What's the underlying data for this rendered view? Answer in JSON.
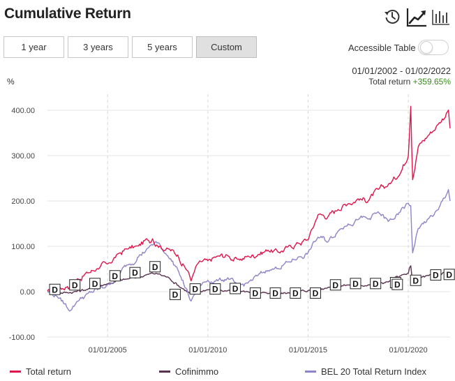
{
  "header": {
    "title": "Cumulative Return",
    "icons": [
      "history-icon",
      "line-chart-icon",
      "bar-chart-icon"
    ]
  },
  "range_buttons": [
    {
      "label": "1 year",
      "active": false
    },
    {
      "label": "3 years",
      "active": false
    },
    {
      "label": "5 years",
      "active": false
    },
    {
      "label": "Custom",
      "active": true
    }
  ],
  "accessible_table": {
    "label": "Accessible Table",
    "on": false
  },
  "summary": {
    "date_range": "01/01/2002 - 01/02/2022",
    "total_label": "Total return",
    "total_value": "+359.65%"
  },
  "colors": {
    "total_return": "#e0134a",
    "cofinimmo": "#5a3050",
    "bel20": "#8c84c8",
    "positive": "#3a8a1e",
    "dividend_marker_border": "#222222"
  },
  "chart_data": {
    "type": "line",
    "ylabel": "%",
    "ylim": [
      -100,
      420
    ],
    "xlim": [
      "2002-01-01",
      "2022-02-01"
    ],
    "y_ticks": [
      "400.00",
      "300.00",
      "200.00",
      "100.00",
      "0.00",
      "-100.00"
    ],
    "y_tick_values": [
      400,
      300,
      200,
      100,
      0,
      -100
    ],
    "x_ticks": [
      "01/01/2005",
      "01/01/2010",
      "01/01/2015",
      "01/01/2020"
    ],
    "x_tick_values": [
      "2005-01-01",
      "2010-01-01",
      "2015-01-01",
      "2020-01-01"
    ],
    "grid": true,
    "legend_position": "bottom",
    "series": [
      {
        "name": "Total return",
        "x": [
          "2002-01-01",
          "2002-07-01",
          "2003-01-01",
          "2003-04-01",
          "2003-07-01",
          "2004-01-01",
          "2004-07-01",
          "2005-01-01",
          "2005-07-01",
          "2006-01-01",
          "2006-07-01",
          "2007-01-01",
          "2007-04-01",
          "2007-07-01",
          "2008-01-01",
          "2008-07-01",
          "2009-01-01",
          "2009-03-01",
          "2009-07-01",
          "2010-01-01",
          "2010-07-01",
          "2011-01-01",
          "2011-07-01",
          "2012-01-01",
          "2012-07-01",
          "2013-01-01",
          "2013-07-01",
          "2014-01-01",
          "2014-07-01",
          "2015-01-01",
          "2015-07-01",
          "2016-01-01",
          "2016-07-01",
          "2017-01-01",
          "2017-07-01",
          "2018-01-01",
          "2018-07-01",
          "2019-01-01",
          "2019-07-01",
          "2020-01-01",
          "2020-02-15",
          "2020-03-20",
          "2020-07-01",
          "2021-01-01",
          "2021-07-01",
          "2022-01-01",
          "2022-02-01"
        ],
        "values": [
          0,
          8,
          12,
          6,
          28,
          42,
          52,
          60,
          82,
          95,
          100,
          115,
          118,
          102,
          95,
          80,
          45,
          25,
          62,
          68,
          78,
          80,
          70,
          78,
          82,
          92,
          88,
          98,
          108,
          115,
          170,
          165,
          182,
          195,
          205,
          200,
          225,
          235,
          255,
          300,
          410,
          248,
          320,
          345,
          370,
          400,
          360
        ]
      },
      {
        "name": "Cofinimmo",
        "x": [
          "2002-01-01",
          "2003-01-01",
          "2004-01-01",
          "2005-01-01",
          "2006-01-01",
          "2007-01-01",
          "2007-06-01",
          "2008-01-01",
          "2009-03-01",
          "2010-01-01",
          "2011-01-01",
          "2012-01-01",
          "2013-01-01",
          "2014-01-01",
          "2015-01-01",
          "2016-01-01",
          "2017-01-01",
          "2018-01-01",
          "2019-01-01",
          "2020-01-01",
          "2020-02-15",
          "2020-03-20",
          "2020-07-01",
          "2021-01-01",
          "2021-07-01",
          "2022-01-01",
          "2022-02-01"
        ],
        "values": [
          0,
          -2,
          5,
          18,
          28,
          38,
          40,
          32,
          -5,
          5,
          2,
          0,
          -5,
          -3,
          2,
          10,
          15,
          15,
          22,
          40,
          58,
          20,
          30,
          35,
          38,
          45,
          35
        ]
      },
      {
        "name": "BEL 20 Total Return Index",
        "x": [
          "2002-01-01",
          "2002-07-01",
          "2003-03-01",
          "2003-07-01",
          "2004-01-01",
          "2004-07-01",
          "2005-01-01",
          "2005-07-01",
          "2006-01-01",
          "2006-07-01",
          "2007-01-01",
          "2007-06-01",
          "2008-01-01",
          "2008-07-01",
          "2009-03-01",
          "2009-07-01",
          "2010-01-01",
          "2010-07-01",
          "2011-01-01",
          "2011-07-01",
          "2012-01-01",
          "2012-07-01",
          "2013-01-01",
          "2013-07-01",
          "2014-01-01",
          "2014-07-01",
          "2015-01-01",
          "2015-07-01",
          "2016-01-01",
          "2016-07-01",
          "2017-01-01",
          "2017-07-01",
          "2018-01-01",
          "2018-07-01",
          "2019-01-01",
          "2019-07-01",
          "2020-01-01",
          "2020-02-15",
          "2020-03-20",
          "2020-07-01",
          "2021-01-01",
          "2021-07-01",
          "2022-01-01",
          "2022-02-01"
        ],
        "values": [
          0,
          -10,
          -42,
          -20,
          -5,
          5,
          15,
          35,
          60,
          75,
          95,
          110,
          80,
          50,
          -22,
          10,
          25,
          25,
          30,
          10,
          20,
          35,
          48,
          52,
          65,
          75,
          85,
          120,
          110,
          135,
          150,
          160,
          160,
          175,
          155,
          170,
          195,
          190,
          85,
          140,
          160,
          180,
          225,
          200
        ]
      }
    ],
    "dividend_markers": {
      "label": "D",
      "dates": [
        "2002-05-15",
        "2003-05-15",
        "2004-05-15",
        "2005-05-15",
        "2006-05-15",
        "2007-05-15",
        "2008-05-15",
        "2009-05-15",
        "2010-05-15",
        "2011-05-15",
        "2012-05-15",
        "2013-05-15",
        "2014-05-15",
        "2015-05-15",
        "2016-05-15",
        "2017-05-15",
        "2018-05-15",
        "2019-05-15",
        "2019-06-15",
        "2020-05-15",
        "2021-05-15",
        "2022-01-15"
      ],
      "values": [
        5,
        15,
        18,
        35,
        42,
        55,
        -6,
        6,
        6,
        7,
        -3,
        -3,
        -3,
        -3,
        15,
        18,
        18,
        20,
        16,
        25,
        37,
        38
      ]
    }
  },
  "legend": [
    {
      "name": "Total return"
    },
    {
      "name": "Cofinimmo"
    },
    {
      "name": "BEL 20 Total Return Index"
    }
  ]
}
